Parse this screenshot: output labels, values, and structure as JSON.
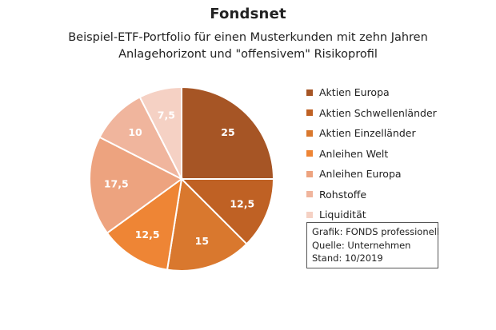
{
  "chart_data": {
    "type": "pie",
    "title": "Fondsnet",
    "subtitle_lines": [
      "Beispiel-ETF-Portfolio für einen Musterkunden mit zehn Jahren",
      "Anlagehorizont und \"offensivem\" Risikoprofil"
    ],
    "slices": [
      {
        "label": "Aktien Europa",
        "value": 25,
        "value_label": "25",
        "color": "#a65525"
      },
      {
        "label": "Aktien Schwellenländer",
        "value": 12.5,
        "value_label": "12,5",
        "color": "#bf6124"
      },
      {
        "label": "Aktien Einzelländer",
        "value": 15,
        "value_label": "15",
        "color": "#d9782e"
      },
      {
        "label": "Anleihen Welt",
        "value": 12.5,
        "value_label": "12,5",
        "color": "#ee8535"
      },
      {
        "label": "Anleihen Europa",
        "value": 17.5,
        "value_label": "17,5",
        "color": "#eda37f"
      },
      {
        "label": "Rohstoffe",
        "value": 10,
        "value_label": "10",
        "color": "#f0b59d"
      },
      {
        "label": "Liquidität",
        "value": 7.5,
        "value_label": "7,5",
        "color": "#f5d1c4"
      }
    ],
    "legend_position": "right"
  },
  "info_box": {
    "lines": [
      "Grafik: FONDS professionell",
      "Quelle: Unternehmen",
      "Stand: 10/2019"
    ]
  }
}
